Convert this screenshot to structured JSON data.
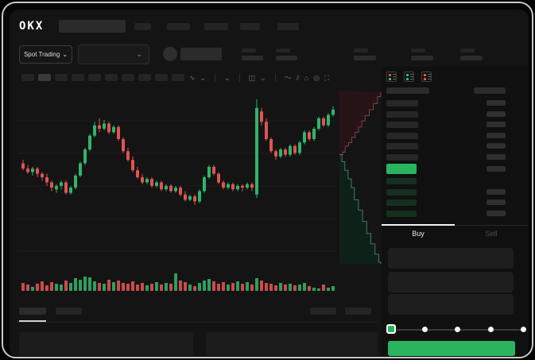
{
  "brand": {
    "name": "OKX"
  },
  "ticker": {
    "market_selector_label": "Spot Trading",
    "chevron": "⌄"
  },
  "toolbar": {
    "icons": [
      {
        "name": "chart-style-icon",
        "glyph": "∿"
      },
      {
        "name": "chart-style-chevron",
        "glyph": "⌄"
      },
      {
        "name": "sep"
      },
      {
        "name": "interval-more-chevron",
        "glyph": "⌄"
      },
      {
        "name": "sep"
      },
      {
        "name": "indicators-icon",
        "glyph": "◫"
      },
      {
        "name": "indicators-chevron",
        "glyph": "⌄"
      },
      {
        "name": "sep"
      },
      {
        "name": "line-tool-icon",
        "glyph": "〜"
      },
      {
        "name": "draw-tool-icon",
        "glyph": "⫽"
      },
      {
        "name": "screenshot-icon",
        "glyph": "⌂"
      },
      {
        "name": "alert-icon",
        "glyph": "◎"
      },
      {
        "name": "fullscreen-icon",
        "glyph": "⛶"
      }
    ]
  },
  "order_book": {
    "view_icons": [
      {
        "name": "book-view-both-icon",
        "top": "#e05452",
        "bottom": "#2dbd6e"
      },
      {
        "name": "book-view-bids-icon",
        "top": "#2dbd6e",
        "bottom": "#2dbd6e"
      },
      {
        "name": "book-view-asks-icon",
        "top": "#e05452",
        "bottom": "#e05452"
      }
    ],
    "ask_rows": 6,
    "bid_rows": 4,
    "amount_on_bid_rows": [
      1,
      2,
      3
    ]
  },
  "trade_panel": {
    "tabs": {
      "buy": "Buy",
      "sell": "Sell"
    },
    "active_tab": "buy",
    "field_count": 3,
    "slider_stops": 5,
    "slider_value_index": 0,
    "submit_label": ""
  },
  "colors": {
    "green": "#2ab45f",
    "candle_green": "#2fb56a",
    "candle_red": "#e05452",
    "vol_green": "#2f9e5f",
    "vol_red": "#c94c4a",
    "bid_row": "#16301f",
    "ask_row": "#272727",
    "amount_block": "#2f2f2f",
    "grid": "#1e1e1e",
    "depth_ask_fill": "#251316",
    "depth_ask_line": "#7d4648",
    "depth_bid_fill": "#0e2119",
    "depth_bid_line": "#3e7c68",
    "text_dim": "#4f4f4f",
    "text": "#ececec"
  },
  "chart_data": {
    "type": "candlestick",
    "title": "",
    "xlabel": "",
    "ylabel": "",
    "ylim": [
      0,
      100
    ],
    "grid": true,
    "candles_ohlc": [
      [
        58,
        60,
        54,
        55
      ],
      [
        55,
        57,
        52,
        53
      ],
      [
        53,
        56,
        51,
        55
      ],
      [
        55,
        56,
        50,
        52
      ],
      [
        52,
        53,
        48,
        50
      ],
      [
        50,
        52,
        45,
        47
      ],
      [
        47,
        48,
        42,
        44
      ],
      [
        43,
        46,
        41,
        45
      ],
      [
        45,
        48,
        43,
        47
      ],
      [
        47,
        48,
        40,
        41
      ],
      [
        41,
        45,
        40,
        44
      ],
      [
        44,
        52,
        43,
        51
      ],
      [
        51,
        59,
        50,
        58
      ],
      [
        58,
        67,
        57,
        66
      ],
      [
        66,
        75,
        65,
        74
      ],
      [
        74,
        82,
        73,
        80
      ],
      [
        80,
        84,
        76,
        78
      ],
      [
        78,
        83,
        77,
        81
      ],
      [
        81,
        82,
        75,
        76
      ],
      [
        76,
        80,
        75,
        79
      ],
      [
        79,
        80,
        71,
        72
      ],
      [
        72,
        73,
        64,
        65
      ],
      [
        65,
        67,
        59,
        60
      ],
      [
        60,
        62,
        53,
        54
      ],
      [
        54,
        56,
        49,
        50
      ],
      [
        50,
        52,
        46,
        47
      ],
      [
        47,
        50,
        46,
        49
      ],
      [
        49,
        50,
        44,
        45
      ],
      [
        45,
        48,
        44,
        47
      ],
      [
        47,
        48,
        42,
        43
      ],
      [
        43,
        46,
        42,
        45
      ],
      [
        45,
        46,
        41,
        42
      ],
      [
        42,
        45,
        41,
        44
      ],
      [
        44,
        45,
        39,
        40
      ],
      [
        40,
        42,
        36,
        37
      ],
      [
        37,
        40,
        36,
        39
      ],
      [
        39,
        40,
        34,
        36
      ],
      [
        36,
        43,
        35,
        42
      ],
      [
        42,
        51,
        41,
        50
      ],
      [
        50,
        57,
        49,
        56
      ],
      [
        56,
        57,
        51,
        52
      ],
      [
        52,
        53,
        46,
        47
      ],
      [
        47,
        48,
        43,
        44
      ],
      [
        44,
        47,
        43,
        46
      ],
      [
        46,
        47,
        42,
        43
      ],
      [
        43,
        46,
        42,
        45
      ],
      [
        45,
        46,
        42,
        44
      ],
      [
        44,
        47,
        43,
        46
      ],
      [
        46,
        47,
        42,
        44
      ],
      [
        40,
        95,
        38,
        90
      ],
      [
        88,
        90,
        80,
        82
      ],
      [
        82,
        84,
        71,
        72
      ],
      [
        72,
        73,
        64,
        65
      ],
      [
        65,
        66,
        60,
        62
      ],
      [
        62,
        67,
        61,
        66
      ],
      [
        66,
        67,
        62,
        63
      ],
      [
        63,
        69,
        62,
        68
      ],
      [
        68,
        69,
        63,
        64
      ],
      [
        64,
        71,
        63,
        70
      ],
      [
        70,
        77,
        69,
        76
      ],
      [
        76,
        77,
        71,
        72
      ],
      [
        72,
        79,
        71,
        78
      ],
      [
        78,
        85,
        77,
        84
      ],
      [
        84,
        85,
        79,
        80
      ],
      [
        80,
        87,
        79,
        86
      ],
      [
        86,
        91,
        85,
        89
      ]
    ],
    "volumes": [
      10,
      8,
      5,
      9,
      12,
      7,
      11,
      9,
      8,
      13,
      10,
      16,
      14,
      18,
      17,
      12,
      10,
      9,
      14,
      11,
      13,
      10,
      9,
      12,
      8,
      10,
      7,
      9,
      11,
      8,
      10,
      9,
      22,
      13,
      11,
      8,
      6,
      10,
      13,
      15,
      12,
      9,
      11,
      8,
      10,
      12,
      9,
      11,
      8,
      16,
      13,
      10,
      9,
      7,
      10,
      8,
      9,
      7,
      8,
      10,
      6,
      4,
      3,
      8,
      4,
      6
    ],
    "depth": {
      "mid_fraction": 0.37,
      "asks_line": [
        [
          0,
          0.37
        ],
        [
          0.08,
          0.355
        ],
        [
          0.14,
          0.32
        ],
        [
          0.22,
          0.3
        ],
        [
          0.3,
          0.27
        ],
        [
          0.38,
          0.24
        ],
        [
          0.46,
          0.21
        ],
        [
          0.54,
          0.175
        ],
        [
          0.62,
          0.145
        ],
        [
          0.72,
          0.11
        ],
        [
          0.82,
          0.075
        ],
        [
          0.92,
          0.035
        ],
        [
          1,
          0.01
        ]
      ],
      "bids_line": [
        [
          0,
          0.37
        ],
        [
          0.06,
          0.41
        ],
        [
          0.13,
          0.46
        ],
        [
          0.21,
          0.51
        ],
        [
          0.29,
          0.56
        ],
        [
          0.36,
          0.63
        ],
        [
          0.46,
          0.69
        ],
        [
          0.56,
          0.755
        ],
        [
          0.66,
          0.825
        ],
        [
          0.76,
          0.885
        ],
        [
          0.86,
          0.945
        ],
        [
          0.95,
          0.99
        ],
        [
          1,
          1.0
        ]
      ]
    }
  }
}
